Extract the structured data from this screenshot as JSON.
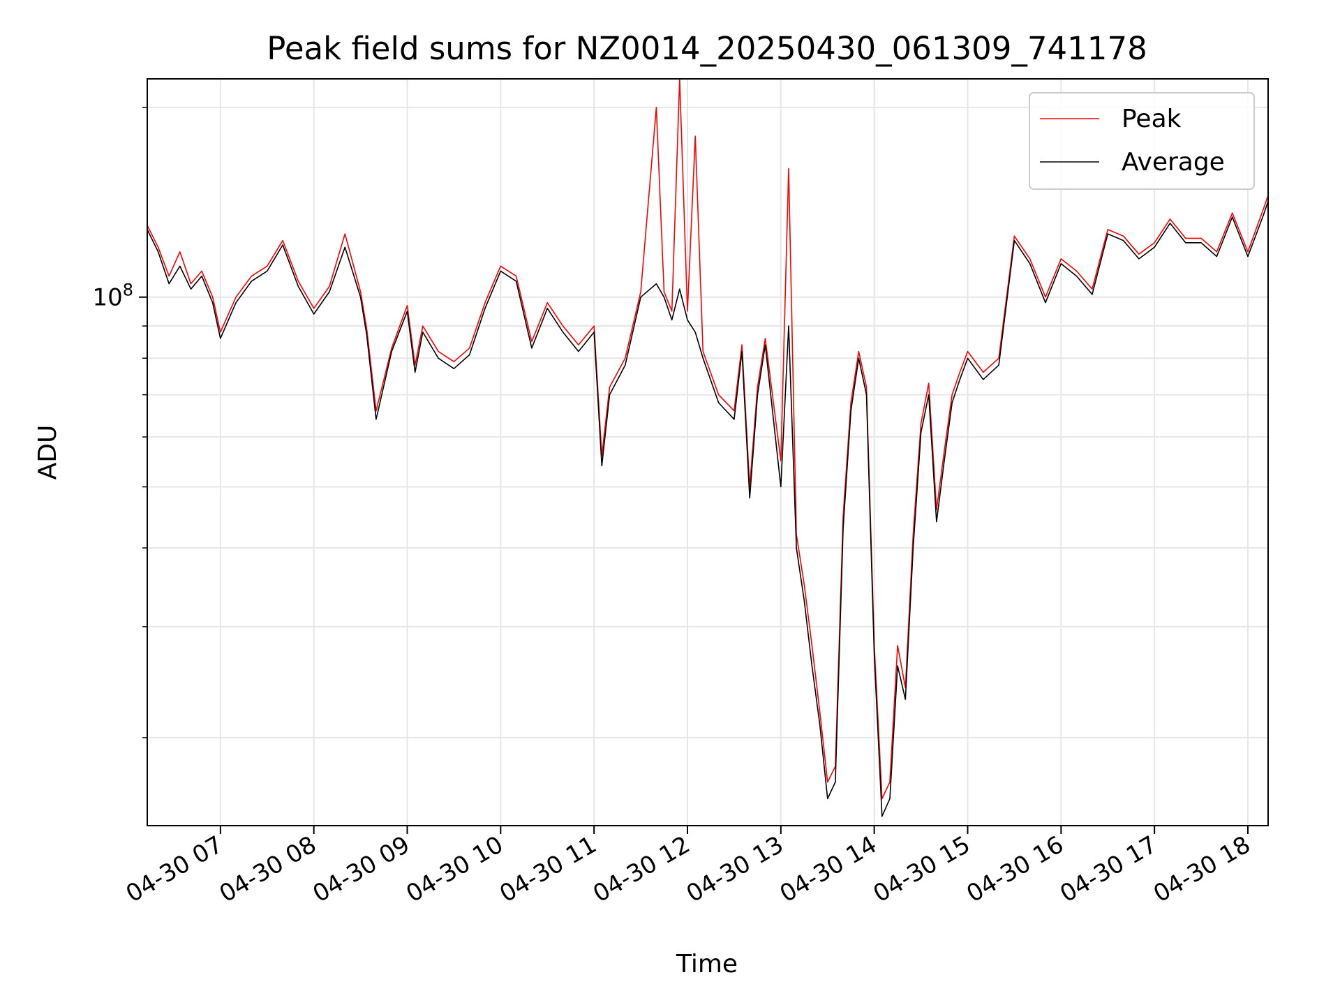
{
  "chart_data": {
    "type": "line",
    "title": "Peak field sums for NZ0014_20250430_061309_741178",
    "xlabel": "Time",
    "ylabel": "ADU",
    "x_scale": "time",
    "y_scale": "log",
    "xlim": [
      "2025-04-30 06:13",
      "2025-04-30 18:13"
    ],
    "ylim": [
      14500000,
      222000000
    ],
    "x_ticks": [
      "04-30 07",
      "04-30 08",
      "04-30 09",
      "04-30 10",
      "04-30 11",
      "04-30 12",
      "04-30 13",
      "04-30 14",
      "04-30 15",
      "04-30 16",
      "04-30 17",
      "04-30 18"
    ],
    "y_ticks": [
      "10^8"
    ],
    "y_minor_ticks": [
      20000000,
      30000000,
      40000000,
      50000000,
      60000000,
      70000000,
      80000000,
      90000000,
      200000000
    ],
    "grid": true,
    "legend_position": "upper right",
    "x": [
      "06:13",
      "06:20",
      "06:27",
      "06:34",
      "06:41",
      "06:48",
      "06:55",
      "07:00",
      "07:10",
      "07:20",
      "07:30",
      "07:40",
      "07:50",
      "08:00",
      "08:10",
      "08:20",
      "08:30",
      "08:34",
      "08:40",
      "08:50",
      "09:00",
      "09:05",
      "09:10",
      "09:20",
      "09:30",
      "09:40",
      "09:50",
      "10:00",
      "10:10",
      "10:20",
      "10:30",
      "10:40",
      "10:50",
      "11:00",
      "11:05",
      "11:10",
      "11:20",
      "11:30",
      "11:40",
      "11:45",
      "11:50",
      "11:55",
      "12:00",
      "12:05",
      "12:10",
      "12:20",
      "12:30",
      "12:35",
      "12:40",
      "12:45",
      "12:50",
      "13:00",
      "13:05",
      "13:10",
      "13:15",
      "13:20",
      "13:25",
      "13:30",
      "13:35",
      "13:40",
      "13:45",
      "13:50",
      "13:55",
      "14:00",
      "14:05",
      "14:10",
      "14:15",
      "14:20",
      "14:25",
      "14:30",
      "14:35",
      "14:40",
      "14:45",
      "14:50",
      "14:55",
      "15:00",
      "15:10",
      "15:20",
      "15:30",
      "15:40",
      "15:50",
      "16:00",
      "16:10",
      "16:20",
      "16:30",
      "16:40",
      "16:50",
      "17:00",
      "17:10",
      "17:20",
      "17:30",
      "17:40",
      "17:50",
      "18:00",
      "18:10",
      "18:13"
    ],
    "series": [
      {
        "name": "Peak",
        "color": "#ff0000",
        "values": [
          130000000,
          120000000,
          108000000,
          118000000,
          105000000,
          110000000,
          100000000,
          88000000,
          100000000,
          108000000,
          112000000,
          123000000,
          106000000,
          96000000,
          104000000,
          126000000,
          102000000,
          89000000,
          66000000,
          83000000,
          97000000,
          78000000,
          90000000,
          82000000,
          79000000,
          83000000,
          98000000,
          112000000,
          108000000,
          85000000,
          98000000,
          90000000,
          84000000,
          90000000,
          56000000,
          72000000,
          80000000,
          102000000,
          200000000,
          102000000,
          95000000,
          222000000,
          95000000,
          180000000,
          82000000,
          70000000,
          66000000,
          84000000,
          50000000,
          72000000,
          86000000,
          55000000,
          160000000,
          42000000,
          35000000,
          28000000,
          22000000,
          17000000,
          18000000,
          45000000,
          68000000,
          82000000,
          72000000,
          28000000,
          16000000,
          17000000,
          28000000,
          24000000,
          42000000,
          63000000,
          73000000,
          46000000,
          57000000,
          70000000,
          76000000,
          82000000,
          76000000,
          80000000,
          125000000,
          115000000,
          100000000,
          115000000,
          110000000,
          103000000,
          128000000,
          125000000,
          117000000,
          122000000,
          133000000,
          124000000,
          124000000,
          118000000,
          136000000,
          118000000,
          138000000,
          145000000
        ]
      },
      {
        "name": "Average",
        "color": "#000000",
        "values": [
          128000000,
          118000000,
          105000000,
          112000000,
          103000000,
          108000000,
          98000000,
          86000000,
          98000000,
          106000000,
          110000000,
          121000000,
          104000000,
          94000000,
          102000000,
          120000000,
          100000000,
          87000000,
          64000000,
          82000000,
          95000000,
          76000000,
          88000000,
          80000000,
          77000000,
          81000000,
          96000000,
          110000000,
          106000000,
          83000000,
          96000000,
          88000000,
          82000000,
          88000000,
          54000000,
          70000000,
          78000000,
          100000000,
          105000000,
          100000000,
          92000000,
          103000000,
          92000000,
          88000000,
          80000000,
          68000000,
          64000000,
          82000000,
          48000000,
          70000000,
          84000000,
          50000000,
          90000000,
          40000000,
          33000000,
          26000000,
          21000000,
          16000000,
          17000000,
          43000000,
          66000000,
          80000000,
          70000000,
          27000000,
          15000000,
          16000000,
          26000000,
          23000000,
          40000000,
          61000000,
          70000000,
          44000000,
          55000000,
          68000000,
          74000000,
          80000000,
          74000000,
          78000000,
          123000000,
          113000000,
          98000000,
          113000000,
          108000000,
          101000000,
          126000000,
          123000000,
          115000000,
          120000000,
          131000000,
          122000000,
          122000000,
          116000000,
          134000000,
          116000000,
          135000000,
          142000000
        ]
      }
    ]
  }
}
